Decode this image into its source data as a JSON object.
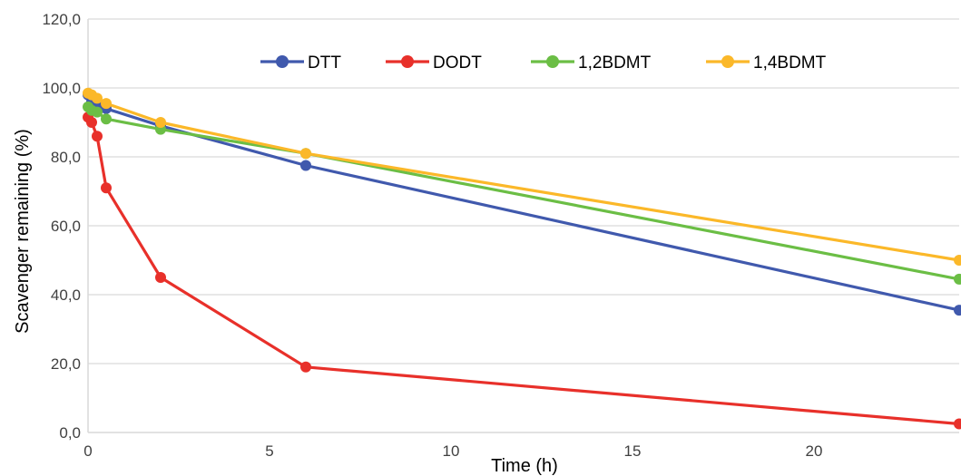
{
  "chart_data": {
    "type": "line",
    "title": "",
    "xlabel": "Time (h)",
    "ylabel": "Scavenger remaining (%)",
    "xlim": [
      0,
      24
    ],
    "ylim": [
      0,
      120
    ],
    "x_ticks": [
      0,
      5,
      10,
      15,
      20
    ],
    "x_tick_labels": [
      "0",
      "5",
      "10",
      "15",
      "20"
    ],
    "y_ticks": [
      0,
      20,
      40,
      60,
      80,
      100,
      120
    ],
    "y_tick_labels": [
      "0,0",
      "20,0",
      "40,0",
      "60,0",
      "80,0",
      "100,0",
      "120,0"
    ],
    "grid": "horizontal",
    "legend_position": "top",
    "series": [
      {
        "name": "DTT",
        "color": "#4059AD",
        "x": [
          0,
          0.1,
          0.25,
          0.5,
          2,
          6,
          24
        ],
        "y": [
          98,
          96,
          95,
          94,
          89,
          77.5,
          35.5
        ]
      },
      {
        "name": "DODT",
        "color": "#E8302A",
        "x": [
          0,
          0.1,
          0.25,
          0.5,
          2,
          6,
          24
        ],
        "y": [
          91.5,
          90,
          86,
          71,
          45,
          19,
          2.5
        ]
      },
      {
        "name": "1,2BDMT",
        "color": "#6BBE45",
        "x": [
          0,
          0.1,
          0.25,
          0.5,
          2,
          6,
          24
        ],
        "y": [
          94.5,
          93.5,
          93,
          91,
          88,
          81,
          44.5
        ]
      },
      {
        "name": "1,4BDMT",
        "color": "#FBB829",
        "x": [
          0,
          0.1,
          0.25,
          0.5,
          2,
          6,
          24
        ],
        "y": [
          98.5,
          98,
          97,
          95.5,
          90,
          81,
          50
        ]
      }
    ]
  }
}
